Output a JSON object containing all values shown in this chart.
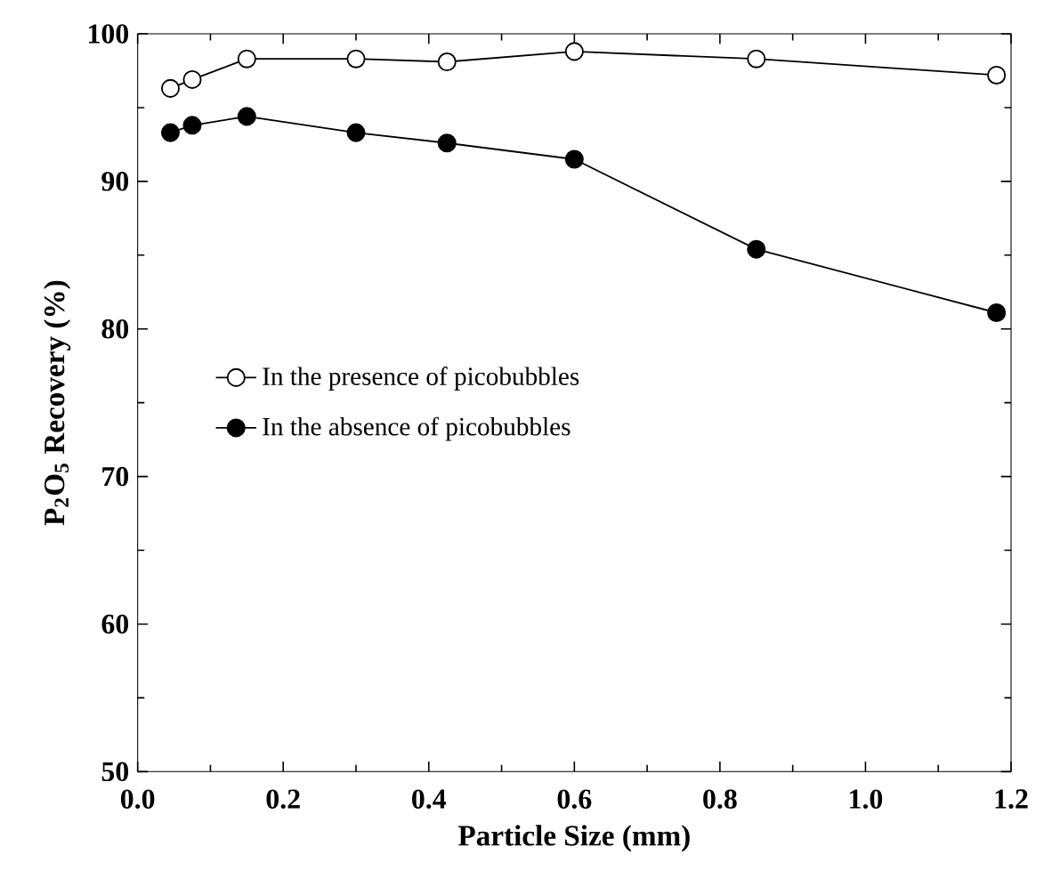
{
  "chart_data": {
    "type": "line",
    "xlabel": "Particle Size (mm)",
    "ylabel": "P$_{2}$O$_{5}$ Recovery (%)",
    "xlim": [
      0,
      1.2
    ],
    "ylim": [
      50,
      100
    ],
    "xticks": [
      {
        "value": 0,
        "label": "0.0"
      },
      0.2,
      0.4,
      0.6,
      0.8,
      {
        "value": 1,
        "label": "1.0"
      },
      1.2
    ],
    "yticks": [
      50,
      60,
      70,
      80,
      90,
      100
    ],
    "marker": "circle",
    "grid": false,
    "legend": "left",
    "series": [
      {
        "name": "In the presence of picobubbles",
        "color": "#ffffff",
        "x": [
          0.045,
          0.075,
          0.15,
          0.3,
          0.425,
          0.6,
          0.85,
          1.18
        ],
        "values": [
          96.3,
          96.9,
          98.3,
          98.3,
          98.1,
          98.8,
          98.3,
          97.2
        ]
      },
      {
        "name": "In the absence of picobubbles",
        "color": "#000000",
        "x": [
          0.045,
          0.075,
          0.15,
          0.3,
          0.425,
          0.6,
          0.85,
          1.18
        ],
        "values": [
          93.3,
          93.8,
          94.4,
          93.3,
          92.6,
          91.5,
          85.4,
          81.1
        ]
      }
    ]
  }
}
